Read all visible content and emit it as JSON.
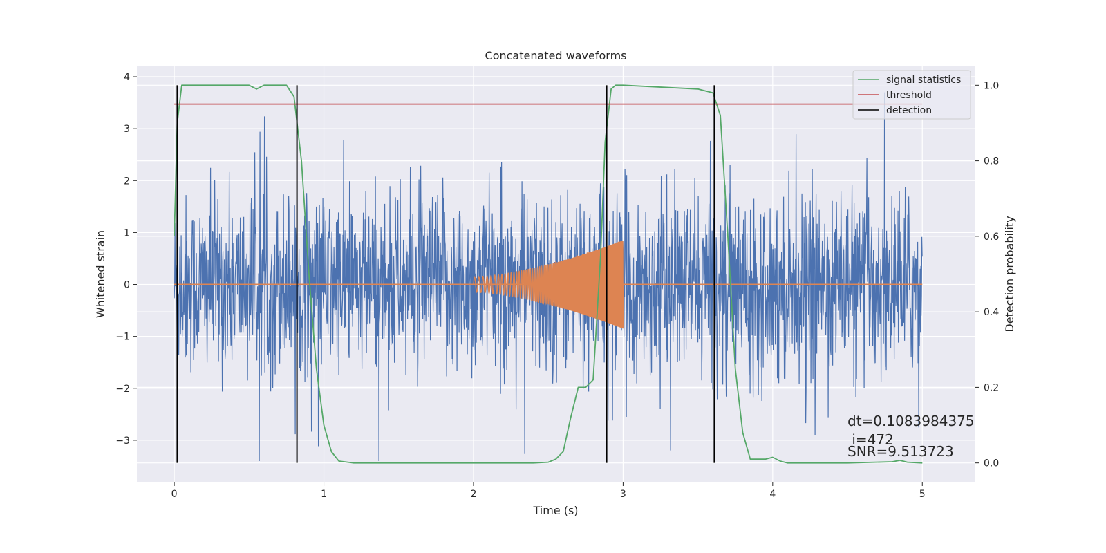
{
  "chart_data": {
    "type": "line",
    "title": "Concatenated waveforms",
    "xlabel": "Time (s)",
    "ylabel": "Whitened strain",
    "y2label": "Detection probability",
    "xlim": [
      -0.25,
      5.35
    ],
    "ylim": [
      -3.8,
      4.2
    ],
    "y2lim": [
      -0.05,
      1.05
    ],
    "xticks": [
      0,
      1,
      2,
      3,
      4,
      5
    ],
    "yticks": [
      -3,
      -2,
      -1,
      0,
      1,
      2,
      3,
      4
    ],
    "y2ticks": [
      0.0,
      0.2,
      0.4,
      0.6,
      0.8,
      1.0
    ],
    "y2tick_labels": [
      "0.0",
      "0.2",
      "0.4",
      "0.6",
      "0.8",
      "1.0"
    ],
    "ytick_labels": [
      "−3",
      "−2",
      "−1",
      "0",
      "1",
      "2",
      "3",
      "4"
    ],
    "grid": true,
    "legend_position": "top-right",
    "series": [
      {
        "name": "",
        "color": "#4c72b0",
        "kind": "noise",
        "x_range": [
          0,
          5
        ],
        "amplitude_range": [
          -3.4,
          3.7
        ]
      },
      {
        "name": "",
        "color": "#dd8452",
        "kind": "chirp",
        "x_range": [
          2,
          3
        ],
        "amplitude_start": 0.15,
        "amplitude_end": 0.85
      },
      {
        "name": "signal statistics",
        "color": "#55a868",
        "axis": "right",
        "x": [
          0.0,
          0.02,
          0.05,
          0.1,
          0.5,
          0.55,
          0.6,
          0.75,
          0.8,
          0.85,
          0.9,
          0.95,
          1.0,
          1.05,
          1.1,
          1.2,
          1.5,
          2.0,
          2.4,
          2.5,
          2.55,
          2.6,
          2.65,
          2.7,
          2.75,
          2.8,
          2.85,
          2.88,
          2.92,
          2.95,
          3.0,
          3.5,
          3.6,
          3.65,
          3.7,
          3.75,
          3.8,
          3.85,
          3.9,
          3.95,
          4.0,
          4.05,
          4.1,
          4.5,
          4.8,
          4.85,
          4.9,
          5.0
        ],
        "values": [
          0.6,
          0.9,
          1.0,
          1.0,
          1.0,
          0.99,
          1.0,
          1.0,
          0.97,
          0.8,
          0.5,
          0.25,
          0.1,
          0.03,
          0.005,
          0.0,
          0.0,
          0.0,
          0.0,
          0.002,
          0.01,
          0.03,
          0.12,
          0.2,
          0.2,
          0.22,
          0.55,
          0.85,
          0.99,
          1.0,
          1.0,
          0.99,
          0.98,
          0.92,
          0.6,
          0.25,
          0.08,
          0.01,
          0.01,
          0.01,
          0.015,
          0.005,
          0.0,
          0.0,
          0.003,
          0.007,
          0.002,
          0.0
        ]
      },
      {
        "name": "threshold",
        "color": "#c44e52",
        "axis": "right",
        "x": [
          0,
          5
        ],
        "values": [
          0.95,
          0.95
        ]
      },
      {
        "name": "detection",
        "color": "#000000",
        "kind": "vlines",
        "x": [
          0.02,
          0.82,
          2.89,
          3.61
        ]
      }
    ],
    "annotations": [
      "dt=0.1083984375",
      " i=472",
      "SNR=9.513723"
    ]
  }
}
